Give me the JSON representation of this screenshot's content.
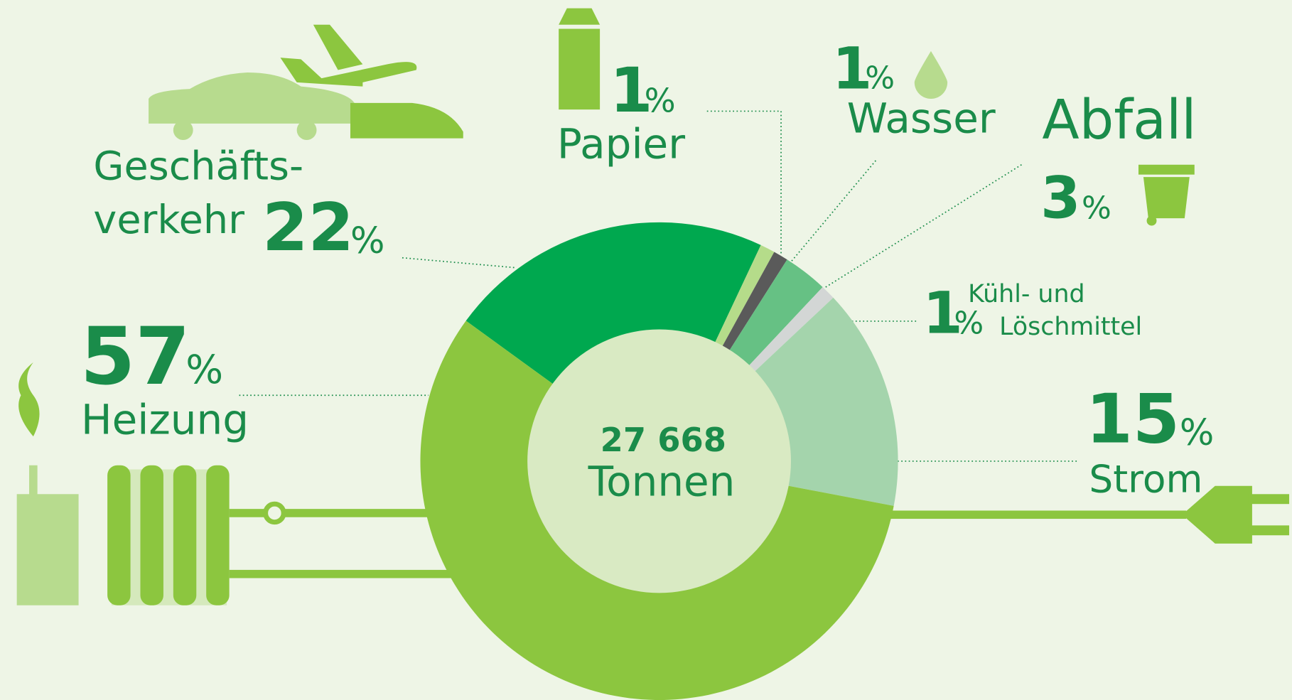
{
  "chart_data": {
    "type": "donut",
    "categories": [
      [
        "Geschäfts-",
        "verkehr"
      ],
      "Papier",
      "Wasser",
      "Abfall",
      [
        "Kühl- und",
        "Löschmittel"
      ],
      "Strom",
      "Heizung"
    ],
    "values": [
      22,
      1,
      1,
      3,
      1,
      15,
      57
    ],
    "unit": "%",
    "colors": [
      "#00a84f",
      "#b5dc8a",
      "#5a5a5a",
      "#66c184",
      "#d3d6d5",
      "#a4d4ac",
      "#8cc63f"
    ],
    "center_value": "27 668",
    "center_label": "Tonnen"
  }
}
